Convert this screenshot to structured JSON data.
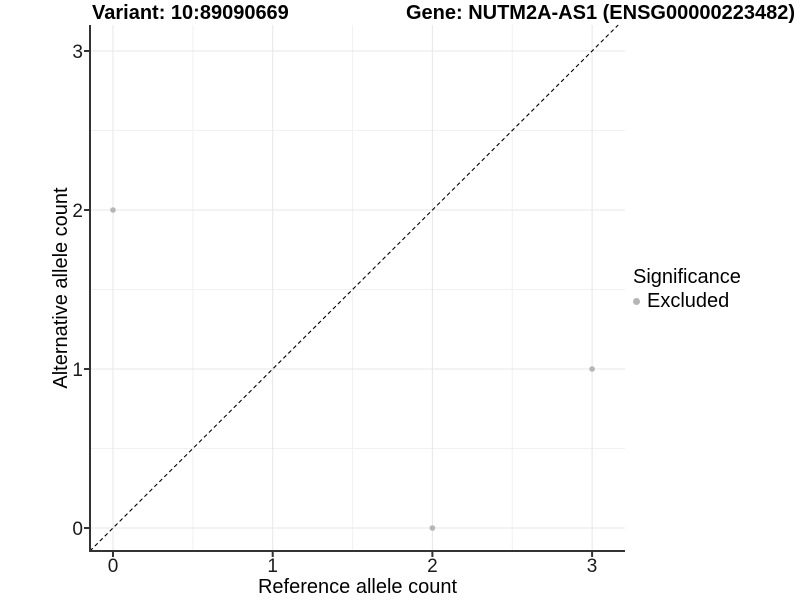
{
  "chart_data": {
    "type": "scatter",
    "title_left": "Variant: 10:89090669",
    "title_right": "Gene: NUTM2A-AS1 (ENSG00000223482)",
    "xlabel": "Reference allele count",
    "ylabel": "Alternative allele count",
    "x_ticks": [
      "0",
      "1",
      "2",
      "3"
    ],
    "y_ticks": [
      "0",
      "1",
      "2",
      "3"
    ],
    "x_tick_values": [
      0,
      1,
      2,
      3
    ],
    "y_tick_values": [
      0,
      1,
      2,
      3
    ],
    "xlim": [
      -0.15,
      3.2
    ],
    "ylim": [
      -0.15,
      3.3
    ],
    "grid": "major+minor",
    "minor_tick_positions": [
      0.5,
      1.5,
      2.5
    ],
    "reference_line": {
      "type": "identity",
      "style": "dashed",
      "color": "#000000"
    },
    "series": [
      {
        "name": "Excluded",
        "color": "#b5b5b5",
        "points": [
          {
            "x": 0,
            "y": 2
          },
          {
            "x": 2,
            "y": 0
          },
          {
            "x": 3,
            "y": 1
          }
        ]
      }
    ],
    "legend": {
      "title": "Significance",
      "position": "right",
      "entries": [
        {
          "label": "Excluded",
          "color": "#b5b5b5"
        }
      ]
    },
    "colors": {
      "background": "#ffffff",
      "grid_major": "#e7e7e7",
      "grid_minor": "#f1f1f1",
      "axis_line": "#333333",
      "tick_label": "#1a1a1a",
      "point": "#b5b5b5"
    }
  }
}
